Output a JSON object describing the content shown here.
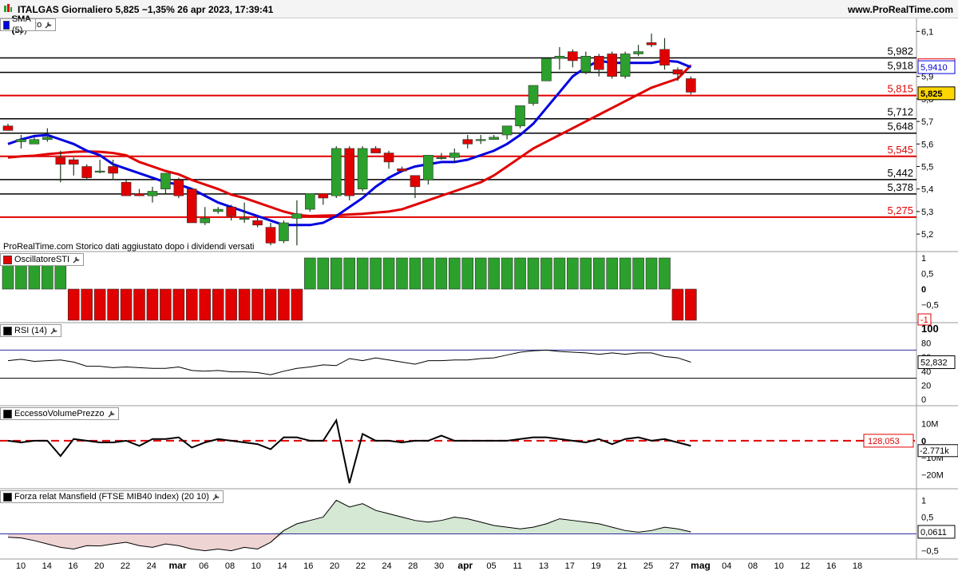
{
  "header": {
    "title": "ITALGAS Giornaliero 5,825 −1,35% 26 apr 2023, 17:39:41",
    "site": "www.ProRealTime.com"
  },
  "main_panel": {
    "legend": [
      {
        "label": "Prezzo",
        "color": "#2ca02c",
        "icon": "wrench-icon"
      },
      {
        "label": "SMA (13)",
        "color": "#e00000"
      },
      {
        "label": "SMA (5)",
        "color": "#0000e0"
      }
    ],
    "note": "ProRealTime.com Storico dati aggiustato dopo i dividendi versati",
    "y_ticks": [
      "6,1",
      "5,9",
      "5,8",
      "5,7",
      "5,6",
      "5,5",
      "5,4",
      "5,3",
      "5,2"
    ],
    "y_tick_values": [
      6.1,
      5.9,
      5.8,
      5.7,
      5.6,
      5.5,
      5.4,
      5.3,
      5.2
    ],
    "hlines": [
      {
        "label": "5,982",
        "value": 5.982,
        "color": "#000000"
      },
      {
        "label": "5,918",
        "value": 5.918,
        "color": "#000000"
      },
      {
        "label": "5,815",
        "value": 5.815,
        "color": "#e00000"
      },
      {
        "label": "5,712",
        "value": 5.712,
        "color": "#000000"
      },
      {
        "label": "5,648",
        "value": 5.648,
        "color": "#000000"
      },
      {
        "label": "5,545",
        "value": 5.545,
        "color": "#e00000"
      },
      {
        "label": "5,442",
        "value": 5.442,
        "color": "#000000"
      },
      {
        "label": "5,378",
        "value": 5.378,
        "color": "#000000"
      },
      {
        "label": "5,275",
        "value": 5.275,
        "color": "#e00000"
      }
    ],
    "value_tags": [
      {
        "label": "5,9496",
        "value": 5.9496,
        "color": "#e00000",
        "bg": "#ffffff"
      },
      {
        "label": "5,9410",
        "value": 5.941,
        "color": "#0000e0",
        "bg": "#ffffff"
      },
      {
        "label": "5,825",
        "value": 5.825,
        "color": "#000000",
        "bg": "#ffd700"
      }
    ]
  },
  "chart_data": [
    {
      "type": "candlestick",
      "title": "ITALGAS Giornaliero",
      "x_ticks": [
        "10",
        "14",
        "16",
        "20",
        "22",
        "24",
        "mar",
        "06",
        "08",
        "10",
        "14",
        "16",
        "20",
        "22",
        "24",
        "28",
        "30",
        "apr",
        "05",
        "11",
        "13",
        "17",
        "19",
        "21",
        "25",
        "27",
        "mag",
        "04",
        "08",
        "10",
        "12",
        "16",
        "18"
      ],
      "candles": [
        {
          "o": 5.68,
          "h": 5.69,
          "l": 5.66,
          "c": 5.66
        },
        {
          "o": 5.61,
          "h": 5.64,
          "l": 5.58,
          "c": 5.62
        },
        {
          "o": 5.6,
          "h": 5.63,
          "l": 5.6,
          "c": 5.62
        },
        {
          "o": 5.62,
          "h": 5.67,
          "l": 5.61,
          "c": 5.63
        },
        {
          "o": 5.54,
          "h": 5.57,
          "l": 5.43,
          "c": 5.51
        },
        {
          "o": 5.53,
          "h": 5.54,
          "l": 5.46,
          "c": 5.51
        },
        {
          "o": 5.5,
          "h": 5.51,
          "l": 5.44,
          "c": 5.45
        },
        {
          "o": 5.48,
          "h": 5.53,
          "l": 5.47,
          "c": 5.48
        },
        {
          "o": 5.5,
          "h": 5.53,
          "l": 5.44,
          "c": 5.47
        },
        {
          "o": 5.43,
          "h": 5.44,
          "l": 5.37,
          "c": 5.37
        },
        {
          "o": 5.38,
          "h": 5.4,
          "l": 5.37,
          "c": 5.37
        },
        {
          "o": 5.37,
          "h": 5.41,
          "l": 5.34,
          "c": 5.39
        },
        {
          "o": 5.4,
          "h": 5.47,
          "l": 5.38,
          "c": 5.47
        },
        {
          "o": 5.44,
          "h": 5.45,
          "l": 5.36,
          "c": 5.37
        },
        {
          "o": 5.4,
          "h": 5.4,
          "l": 5.25,
          "c": 5.25
        },
        {
          "o": 5.25,
          "h": 5.32,
          "l": 5.24,
          "c": 5.27
        },
        {
          "o": 5.3,
          "h": 5.32,
          "l": 5.29,
          "c": 5.31
        },
        {
          "o": 5.32,
          "h": 5.33,
          "l": 5.26,
          "c": 5.28
        },
        {
          "o": 5.27,
          "h": 5.34,
          "l": 5.25,
          "c": 5.27
        },
        {
          "o": 5.26,
          "h": 5.28,
          "l": 5.23,
          "c": 5.24
        },
        {
          "o": 5.23,
          "h": 5.25,
          "l": 5.15,
          "c": 5.16
        },
        {
          "o": 5.17,
          "h": 5.26,
          "l": 5.16,
          "c": 5.25
        },
        {
          "o": 5.27,
          "h": 5.35,
          "l": 5.15,
          "c": 5.29
        },
        {
          "o": 5.31,
          "h": 5.38,
          "l": 5.3,
          "c": 5.38
        },
        {
          "o": 5.38,
          "h": 5.38,
          "l": 5.33,
          "c": 5.36
        },
        {
          "o": 5.37,
          "h": 5.59,
          "l": 5.36,
          "c": 5.58
        },
        {
          "o": 5.58,
          "h": 5.59,
          "l": 5.35,
          "c": 5.37
        },
        {
          "o": 5.4,
          "h": 5.59,
          "l": 5.39,
          "c": 5.58
        },
        {
          "o": 5.58,
          "h": 5.59,
          "l": 5.56,
          "c": 5.56
        },
        {
          "o": 5.56,
          "h": 5.57,
          "l": 5.49,
          "c": 5.52
        },
        {
          "o": 5.49,
          "h": 5.5,
          "l": 5.48,
          "c": 5.48
        },
        {
          "o": 5.46,
          "h": 5.46,
          "l": 5.36,
          "c": 5.41
        },
        {
          "o": 5.44,
          "h": 5.55,
          "l": 5.42,
          "c": 5.55
        },
        {
          "o": 5.54,
          "h": 5.56,
          "l": 5.53,
          "c": 5.54
        },
        {
          "o": 5.54,
          "h": 5.58,
          "l": 5.52,
          "c": 5.56
        },
        {
          "o": 5.62,
          "h": 5.64,
          "l": 5.58,
          "c": 5.6
        },
        {
          "o": 5.62,
          "h": 5.64,
          "l": 5.6,
          "c": 5.62
        },
        {
          "o": 5.62,
          "h": 5.64,
          "l": 5.62,
          "c": 5.63
        },
        {
          "o": 5.64,
          "h": 5.68,
          "l": 5.62,
          "c": 5.68
        },
        {
          "o": 5.68,
          "h": 5.77,
          "l": 5.67,
          "c": 5.77
        },
        {
          "o": 5.78,
          "h": 5.86,
          "l": 5.77,
          "c": 5.86
        },
        {
          "o": 5.88,
          "h": 5.98,
          "l": 5.88,
          "c": 5.98
        },
        {
          "o": 5.98,
          "h": 6.03,
          "l": 5.93,
          "c": 5.99
        },
        {
          "o": 6.01,
          "h": 6.02,
          "l": 5.94,
          "c": 5.97
        },
        {
          "o": 5.92,
          "h": 6.01,
          "l": 5.91,
          "c": 5.99
        },
        {
          "o": 5.99,
          "h": 6.0,
          "l": 5.9,
          "c": 5.93
        },
        {
          "o": 6.0,
          "h": 6.01,
          "l": 5.89,
          "c": 5.9
        },
        {
          "o": 5.9,
          "h": 6.01,
          "l": 5.89,
          "c": 6.0
        },
        {
          "o": 6.0,
          "h": 6.04,
          "l": 5.99,
          "c": 6.01
        },
        {
          "o": 6.05,
          "h": 6.09,
          "l": 6.03,
          "c": 6.04
        },
        {
          "o": 6.02,
          "h": 6.07,
          "l": 5.93,
          "c": 5.95
        },
        {
          "o": 5.93,
          "h": 5.94,
          "l": 5.88,
          "c": 5.91
        },
        {
          "o": 5.89,
          "h": 5.9,
          "l": 5.82,
          "c": 5.83
        }
      ],
      "sma13": [
        5.54,
        5.545,
        5.548,
        5.555,
        5.56,
        5.565,
        5.567,
        5.565,
        5.56,
        5.55,
        5.52,
        5.5,
        5.48,
        5.465,
        5.44,
        5.42,
        5.4,
        5.375,
        5.36,
        5.34,
        5.32,
        5.3,
        5.285,
        5.28,
        5.282,
        5.283,
        5.287,
        5.29,
        5.295,
        5.3,
        5.31,
        5.33,
        5.35,
        5.37,
        5.39,
        5.41,
        5.43,
        5.46,
        5.5,
        5.54,
        5.58,
        5.61,
        5.64,
        5.67,
        5.7,
        5.73,
        5.76,
        5.79,
        5.82,
        5.85,
        5.87,
        5.89,
        5.9496
      ],
      "sma5": [
        5.6,
        5.62,
        5.635,
        5.64,
        5.62,
        5.6,
        5.57,
        5.55,
        5.51,
        5.49,
        5.47,
        5.45,
        5.43,
        5.42,
        5.4,
        5.37,
        5.34,
        5.32,
        5.3,
        5.28,
        5.26,
        5.24,
        5.24,
        5.24,
        5.25,
        5.28,
        5.32,
        5.36,
        5.41,
        5.45,
        5.48,
        5.5,
        5.51,
        5.52,
        5.52,
        5.53,
        5.55,
        5.57,
        5.6,
        5.64,
        5.69,
        5.76,
        5.83,
        5.9,
        5.94,
        5.97,
        5.96,
        5.96,
        5.96,
        5.96,
        5.97,
        5.965,
        5.941
      ]
    },
    {
      "type": "bar",
      "title": "OscillatoreSTI",
      "y_ticks": [
        "1",
        "0,5",
        "0",
        "−0,5",
        "−1"
      ],
      "ylim": [
        -1,
        1
      ],
      "last_label": "-1",
      "values": [
        1,
        1,
        1,
        1,
        1,
        -1,
        -1,
        -1,
        -1,
        -1,
        -1,
        -1,
        -1,
        -1,
        -1,
        -1,
        -1,
        -1,
        -1,
        -1,
        -1,
        -1,
        -1,
        1,
        1,
        1,
        1,
        1,
        1,
        1,
        1,
        1,
        1,
        1,
        1,
        1,
        1,
        1,
        1,
        1,
        1,
        1,
        1,
        1,
        1,
        1,
        1,
        1,
        1,
        1,
        1,
        -1,
        -1
      ]
    },
    {
      "type": "line",
      "title": "RSI (14)",
      "y_ticks": [
        "100",
        "80",
        "60",
        "40",
        "20",
        "0"
      ],
      "ylim": [
        0,
        100
      ],
      "levels": [
        70,
        30
      ],
      "last_label": "52,832",
      "values": [
        55,
        57,
        54,
        55,
        56,
        53,
        47,
        47,
        45,
        46,
        45,
        44,
        44,
        46,
        41,
        40,
        41,
        39,
        39,
        38,
        35,
        40,
        44,
        46,
        49,
        48,
        58,
        55,
        59,
        56,
        53,
        50,
        55,
        55,
        56,
        56,
        58,
        59,
        63,
        67,
        69,
        70,
        68,
        67,
        66,
        64,
        66,
        64,
        66,
        66,
        61,
        59,
        52.8
      ]
    },
    {
      "type": "line",
      "title": "EccessoVolumePrezzo",
      "y_ticks": [
        "10M",
        "0",
        "−10M",
        "−20M"
      ],
      "ylim": [
        -25,
        15
      ],
      "baseline_label": "128,053",
      "last_label": "-2.771k",
      "values": [
        0,
        -1,
        0,
        0,
        -9,
        1,
        0,
        -1,
        -1,
        0,
        -3,
        1,
        1,
        2,
        -4,
        -1,
        1,
        0,
        -1,
        -2,
        -5,
        2,
        2,
        0,
        0,
        12,
        -25,
        4,
        0,
        0,
        -1,
        0,
        0,
        3,
        0,
        0,
        0,
        0,
        0,
        1,
        2,
        2,
        1,
        0,
        -1,
        1,
        -2,
        1,
        2,
        0,
        1,
        -1,
        -3
      ]
    },
    {
      "type": "area",
      "title": "Forza relat Mansfield (FTSE MIB40 Index) (20 10)",
      "y_ticks": [
        "1",
        "0,5",
        "0",
        "−0,5"
      ],
      "ylim": [
        -0.7,
        1.2
      ],
      "last_label": "0,0611",
      "values": [
        -0.1,
        -0.12,
        -0.2,
        -0.3,
        -0.4,
        -0.45,
        -0.35,
        -0.36,
        -0.3,
        -0.25,
        -0.35,
        -0.4,
        -0.3,
        -0.35,
        -0.45,
        -0.5,
        -0.45,
        -0.5,
        -0.4,
        -0.45,
        -0.25,
        0.1,
        0.3,
        0.4,
        0.5,
        1.0,
        0.8,
        0.9,
        0.7,
        0.6,
        0.5,
        0.4,
        0.35,
        0.4,
        0.5,
        0.45,
        0.35,
        0.25,
        0.2,
        0.15,
        0.2,
        0.3,
        0.45,
        0.4,
        0.35,
        0.3,
        0.2,
        0.1,
        0.05,
        0.1,
        0.2,
        0.15,
        0.0611
      ]
    }
  ]
}
